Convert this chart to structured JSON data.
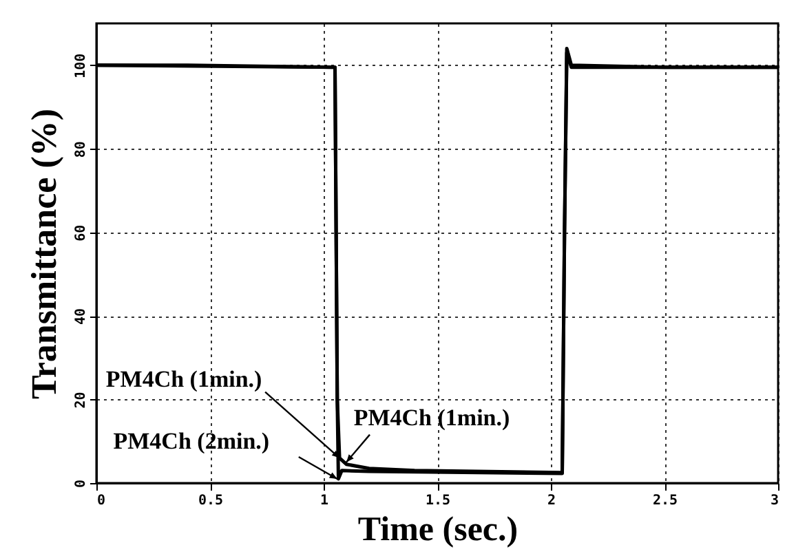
{
  "chart_data": {
    "type": "line",
    "xlabel": "Time (sec.)",
    "ylabel": "Transmittance (%)",
    "xlim": [
      0,
      3
    ],
    "xticks": [
      0,
      0.5,
      1,
      1.5,
      2,
      2.5,
      3
    ],
    "ylim": [
      0,
      110
    ],
    "yticks": [
      0,
      20,
      40,
      60,
      80,
      100
    ],
    "grid": true,
    "line_style": "solid",
    "series": [
      {
        "color": "#000000",
        "x": [
          0,
          0.4,
          1.05,
          1.06,
          1.07,
          1.1,
          1.2,
          1.4,
          2.05,
          2.06,
          2.07,
          2.09,
          2.5,
          3
        ],
        "values": [
          100,
          100,
          99.5,
          20,
          6,
          4.5,
          3.5,
          3,
          2.5,
          60,
          104,
          100,
          99.5,
          99.5
        ]
      },
      {
        "color": "#000000",
        "x": [
          0,
          1.05,
          1.06,
          1.065,
          1.08,
          1.2,
          2.05,
          2.06,
          2.07,
          2.09,
          3
        ],
        "values": [
          100,
          99.5,
          20,
          1,
          3,
          2.8,
          2.3,
          60,
          103,
          99.5,
          99.5
        ]
      }
    ],
    "annotations": [
      {
        "text": "PM4Ch (1min.)",
        "x": 1.07,
        "y": 6
      },
      {
        "text": "PM4Ch (2min.)",
        "x": 1.06,
        "y": 1
      },
      {
        "text": "PM4Ch (1min.)",
        "x": 1.1,
        "y": 5
      }
    ]
  }
}
